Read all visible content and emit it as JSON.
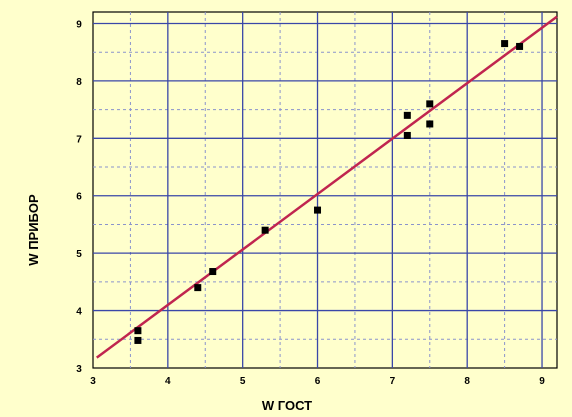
{
  "chart_data": {
    "type": "scatter",
    "title": "",
    "xlabel": "W ГОСТ",
    "ylabel": "W ПРИБОР",
    "xlim": [
      3,
      9.2
    ],
    "ylim": [
      3,
      9.2
    ],
    "x_ticks": [
      "3",
      "4",
      "5",
      "6",
      "7",
      "8",
      "9"
    ],
    "y_ticks": [
      "3",
      "4",
      "5",
      "6",
      "7",
      "8",
      "9"
    ],
    "grid": true,
    "colors": {
      "background": "#FFFFCC",
      "plot_area": "#FFFFCC",
      "grid_major": "#3A47A8",
      "grid_minor": "#8A93CC",
      "fit_line": "#C0254F",
      "points": "#000000"
    },
    "points": [
      {
        "x": 3.6,
        "y": 3.65
      },
      {
        "x": 3.6,
        "y": 3.48
      },
      {
        "x": 4.4,
        "y": 4.4
      },
      {
        "x": 4.6,
        "y": 4.68
      },
      {
        "x": 5.3,
        "y": 5.4
      },
      {
        "x": 6.0,
        "y": 5.75
      },
      {
        "x": 7.2,
        "y": 7.05
      },
      {
        "x": 7.2,
        "y": 7.4
      },
      {
        "x": 7.5,
        "y": 7.25
      },
      {
        "x": 7.5,
        "y": 7.6
      },
      {
        "x": 8.5,
        "y": 8.65
      },
      {
        "x": 8.7,
        "y": 8.6
      }
    ],
    "fit_line": {
      "x1": 3.05,
      "y1": 3.18,
      "x2": 9.2,
      "y2": 9.12
    }
  }
}
